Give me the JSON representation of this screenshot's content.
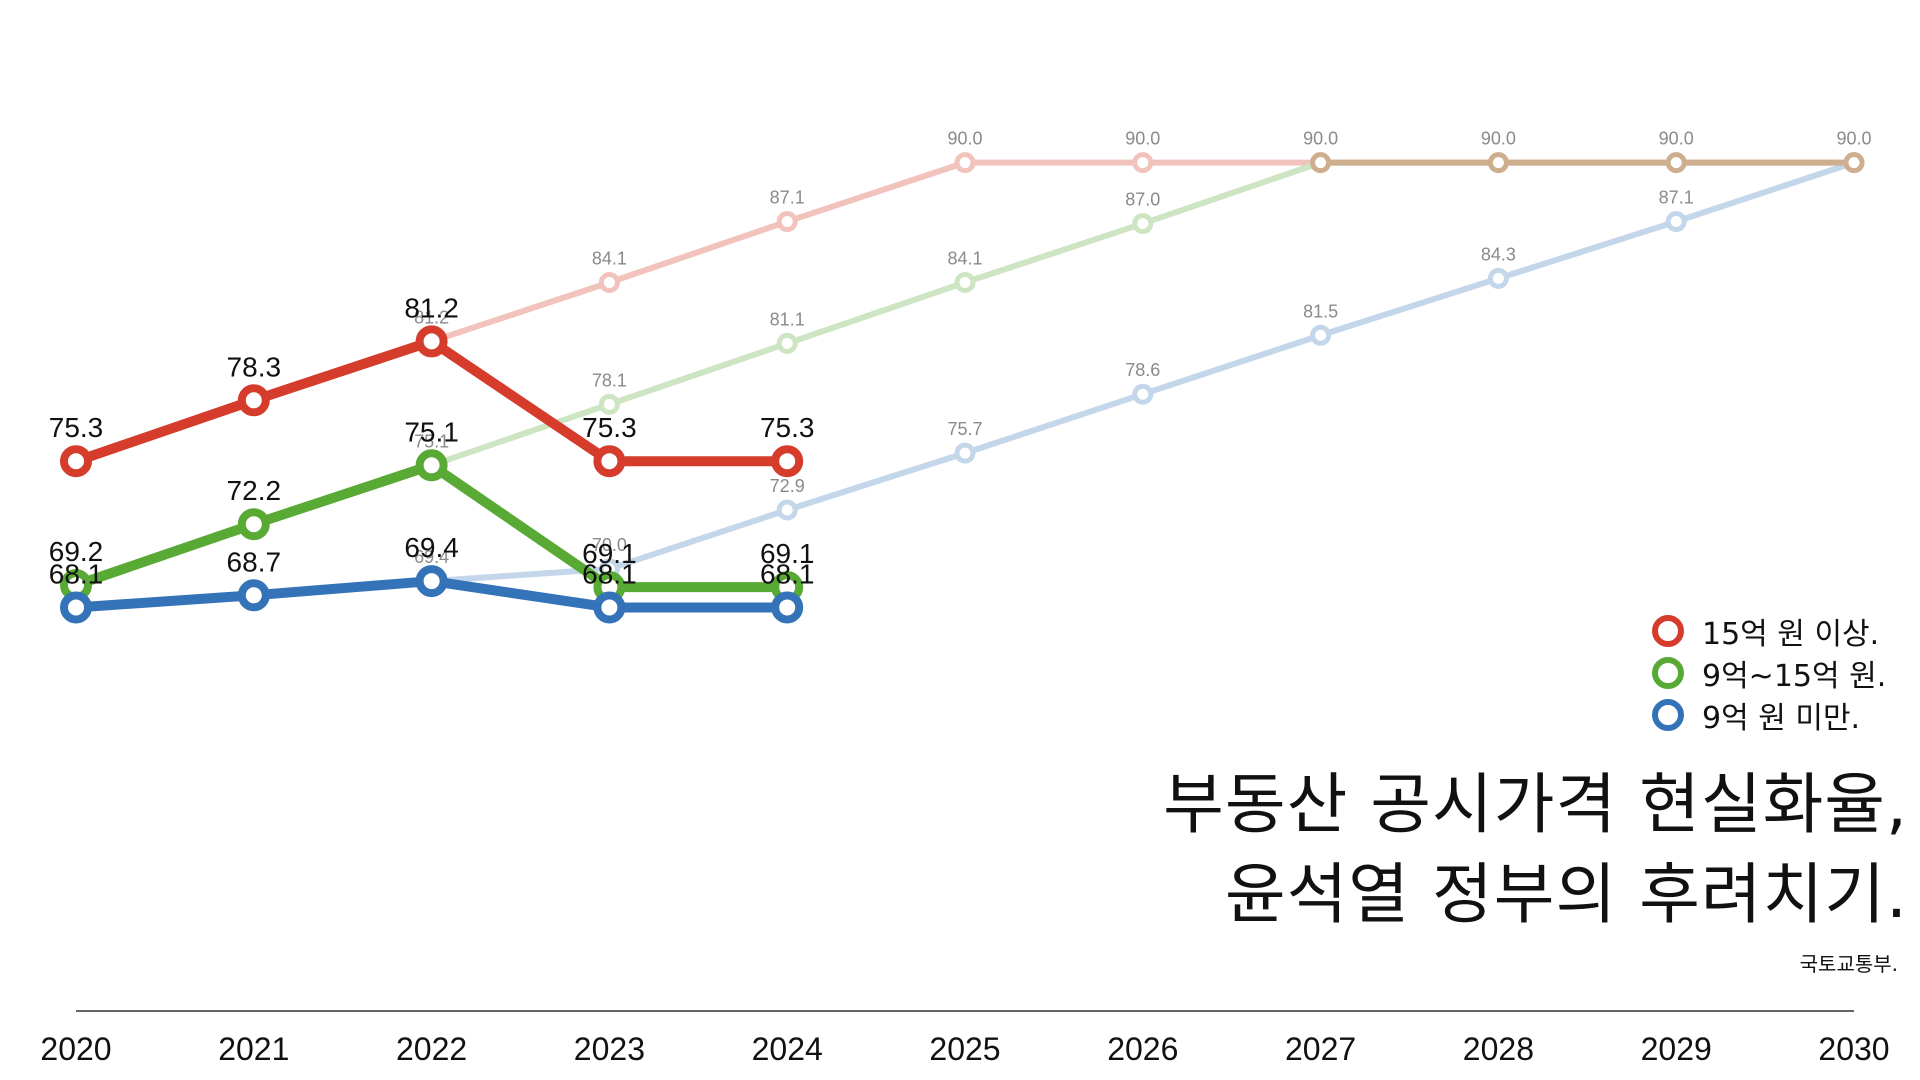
{
  "title_lines": [
    "부동산 공시가격 현실화율,",
    "윤석열 정부의 후려치기."
  ],
  "source": "국토교통부.",
  "legend": [
    {
      "label": "15억 원 이상.",
      "color": "#D63C2B"
    },
    {
      "label": "9억~15억 원.",
      "color": "#58AA35"
    },
    {
      "label": "9억 원 미만.",
      "color": "#3573B8"
    }
  ],
  "chart_data": {
    "type": "line",
    "x": [
      "2020",
      "2021",
      "2022",
      "2023",
      "2024",
      "2025",
      "2026",
      "2027",
      "2028",
      "2029",
      "2030"
    ],
    "ylim": [
      60,
      92
    ],
    "grid": false,
    "legend_position": "right",
    "series": [
      {
        "name": "15억 원 이상.",
        "role": "plan",
        "color": "#F2C3BC",
        "values": [
          null,
          null,
          81.2,
          84.1,
          87.1,
          90.0,
          90.0,
          90.0,
          90.0,
          90.0,
          90.0
        ],
        "labels": [
          "",
          "",
          "81.2",
          "84.1",
          "87.1",
          "90.0",
          "90.0",
          "",
          "",
          "",
          ""
        ]
      },
      {
        "name": "9억~15억 원.",
        "role": "plan",
        "color": "#CDE5C2",
        "values": [
          null,
          null,
          75.1,
          78.1,
          81.1,
          84.1,
          87.0,
          90.0,
          null,
          null,
          null
        ],
        "labels": [
          "",
          "",
          "75.1",
          "78.1",
          "81.1",
          "84.1",
          "87.0",
          "",
          "",
          "",
          ""
        ]
      },
      {
        "name": "9억 원 미만.",
        "role": "plan",
        "color": "#C4D6EA",
        "values": [
          null,
          null,
          69.4,
          70.0,
          72.9,
          75.7,
          78.6,
          81.5,
          84.3,
          87.1,
          90.0
        ],
        "labels": [
          "",
          "",
          "69.4",
          "70.0",
          "72.9",
          "75.7",
          "78.6",
          "81.5",
          "84.3",
          "87.1",
          ""
        ]
      },
      {
        "name": "overlap",
        "role": "plan-merged",
        "color": "#CDAE8E",
        "values": [
          null,
          null,
          null,
          null,
          null,
          null,
          null,
          90.0,
          90.0,
          90.0,
          90.0
        ],
        "labels": [
          "",
          "",
          "",
          "",
          "",
          "",
          "",
          "90.0",
          "90.0",
          "90.0",
          "90.0"
        ]
      },
      {
        "name": "15억 원 이상.",
        "role": "actual",
        "color": "#D63C2B",
        "values": [
          75.3,
          78.3,
          81.2,
          75.3,
          75.3,
          null,
          null,
          null,
          null,
          null,
          null
        ],
        "labels": [
          "75.3",
          "78.3",
          "81.2",
          "75.3",
          "75.3",
          "",
          "",
          "",
          "",
          "",
          ""
        ]
      },
      {
        "name": "9억~15억 원.",
        "role": "actual",
        "color": "#58AA35",
        "values": [
          69.2,
          72.2,
          75.1,
          69.1,
          69.1,
          null,
          null,
          null,
          null,
          null,
          null
        ],
        "labels": [
          "69.2",
          "72.2",
          "75.1",
          "69.1",
          "69.1",
          "",
          "",
          "",
          "",
          "",
          ""
        ]
      },
      {
        "name": "9억 원 미만.",
        "role": "actual",
        "color": "#3573B8",
        "values": [
          68.1,
          68.7,
          69.4,
          68.1,
          68.1,
          null,
          null,
          null,
          null,
          null,
          null
        ],
        "labels": [
          "68.1",
          "68.7",
          "69.4",
          "68.1",
          "68.1",
          "",
          "",
          "",
          "",
          "",
          ""
        ]
      }
    ]
  }
}
